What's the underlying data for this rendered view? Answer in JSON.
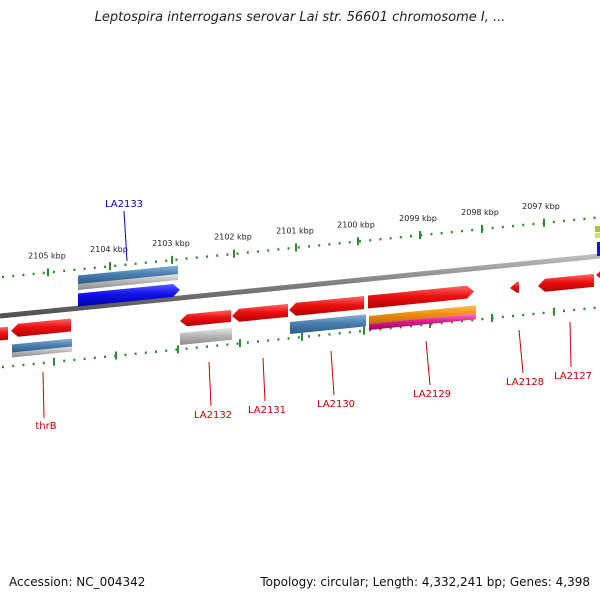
{
  "title": "Leptospira interrogans serovar Lai str. 56601 chromosome I, ...",
  "footer": {
    "accession": "Accession: NC_004342",
    "topology": "Topology: circular; Length: 4,332,241 bp; Genes: 4,398"
  },
  "colors": {
    "backbone": "#808080",
    "tick": "#2e8b2e",
    "gene_red": "#ee1111",
    "gene_blue": "#1111ee",
    "gene_steelblue": "#4a7fb0",
    "gene_gray": "#b8b8b8",
    "gene_orange": "#f0900a",
    "gene_magenta": "#e0208f",
    "label_red": "#cc0000",
    "label_blue": "#0000cc"
  },
  "scale_labels": [
    "2105 kbp",
    "2104 kbp",
    "2103 kbp",
    "2102 kbp",
    "2101 kbp",
    "2100 kbp",
    "2099 kbp",
    "2098 kbp",
    "2097 kbp"
  ],
  "genes": [
    {
      "label": "LA2133",
      "color": "blue"
    },
    {
      "label": "thrB",
      "color": "red"
    },
    {
      "label": "LA2132",
      "color": "red"
    },
    {
      "label": "LA2131",
      "color": "red"
    },
    {
      "label": "LA2130",
      "color": "red"
    },
    {
      "label": "LA2129",
      "color": "red"
    },
    {
      "label": "LA2128",
      "color": "red"
    },
    {
      "label": "LA2127",
      "color": "red"
    }
  ]
}
